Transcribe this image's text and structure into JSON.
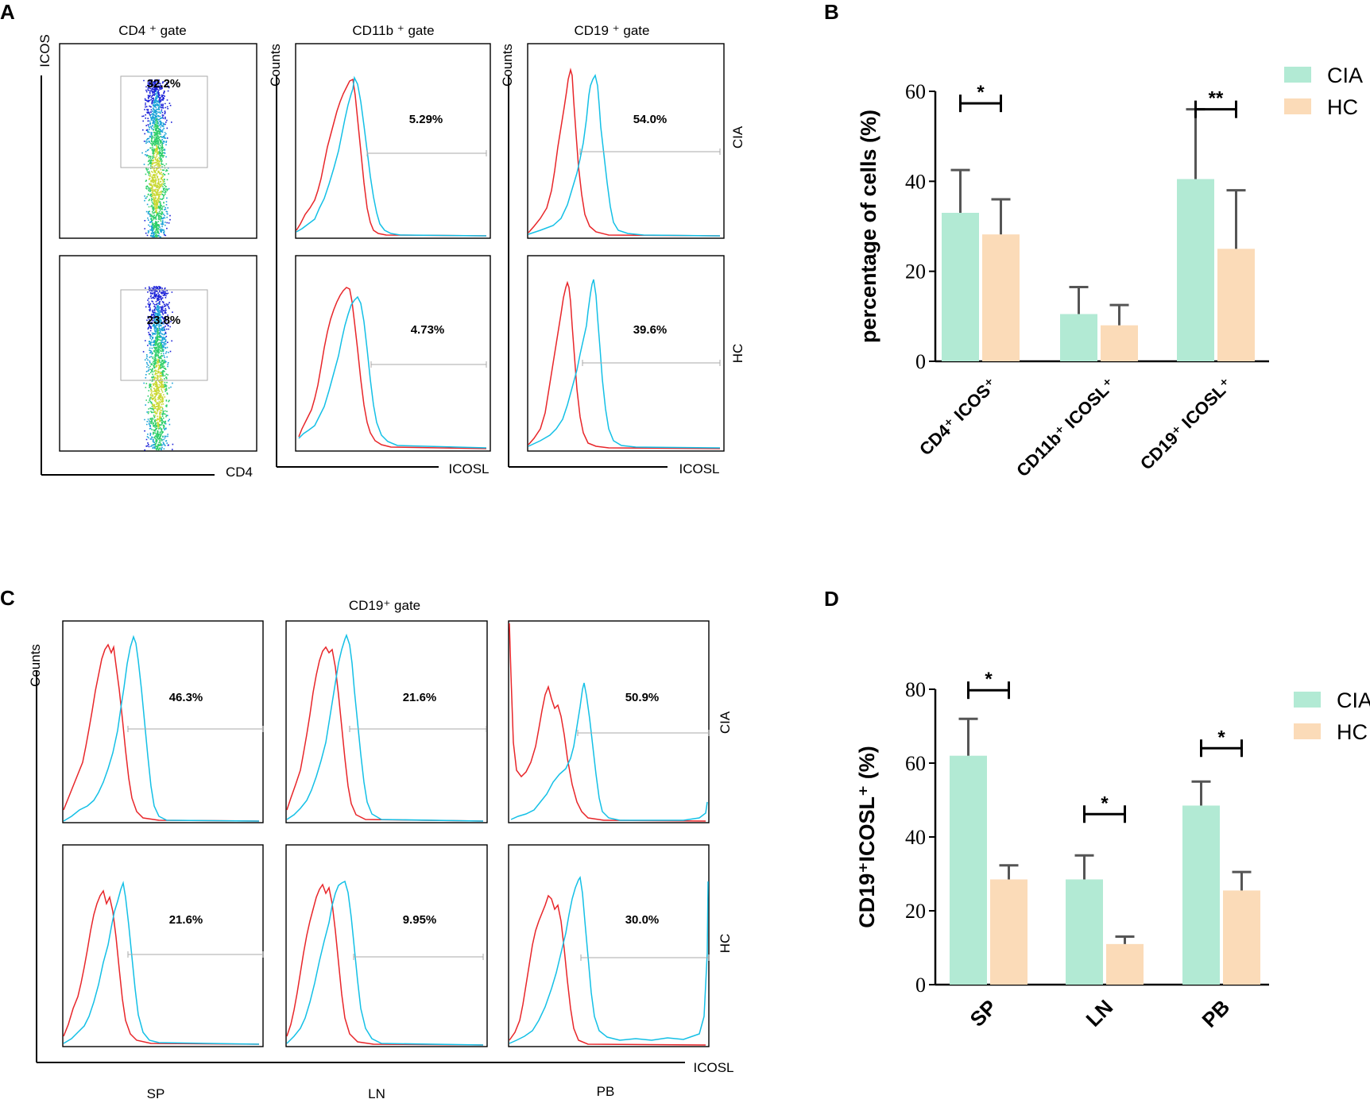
{
  "colors": {
    "cia": "#b2ead4",
    "hc": "#fbdbb8",
    "error_bar": "#555555",
    "control_line": "#e8262a",
    "stain_line": "#14c0e6",
    "gate": "#aaaaaa"
  },
  "panelA": {
    "letter": "A",
    "scatter": {
      "title": "CD4 ⁺ gate",
      "ylabel": "ICOS",
      "xlabel": "CD4",
      "pct_cia": "32.2%",
      "pct_hc": "23.8%"
    },
    "hist1": {
      "title": "CD11b ⁺ gate",
      "ylabel": "Counts",
      "xlabel": "ICOSL",
      "pct_cia": "5.29%",
      "pct_hc": "4.73%"
    },
    "hist2": {
      "title": "CD19 ⁺ gate",
      "ylabel": "Counts",
      "xlabel": "ICOSL",
      "pct_cia": "54.0%",
      "pct_hc": "39.6%"
    },
    "row_cia": "CIA",
    "row_hc": "HC"
  },
  "panelC": {
    "letter": "C",
    "title": "CD19⁺ gate",
    "ylabel": "Counts",
    "xlabel": "ICOSL",
    "columns": [
      "SP",
      "LN",
      "PB"
    ],
    "pct_cia": [
      "46.3%",
      "21.6%",
      "50.9%"
    ],
    "pct_hc": [
      "21.6%",
      "9.95%",
      "30.0%"
    ],
    "row_cia": "CIA",
    "row_hc": "HC"
  },
  "chart_data": [
    {
      "panel": "B",
      "type": "bar",
      "ylabel": "percentage of cells (%)",
      "ylim": [
        0,
        60
      ],
      "yticks": [
        "0",
        "20",
        "40",
        "60"
      ],
      "categories": [
        "CD4⁺ ICOS⁺",
        "CD11b⁺ ICOSL⁺",
        "CD19⁺ ICOSL⁺"
      ],
      "series": [
        {
          "name": "CIA",
          "values": [
            33,
            10.5,
            40.5
          ],
          "errors": [
            9.5,
            6,
            15.5
          ]
        },
        {
          "name": "HC",
          "values": [
            28.2,
            8,
            25
          ],
          "errors": [
            7.8,
            4.5,
            13
          ]
        }
      ],
      "significance": [
        "*",
        "",
        "**"
      ],
      "legend": [
        "CIA",
        "HC"
      ]
    },
    {
      "panel": "D",
      "type": "bar",
      "ylabel": "CD19⁺ICOSL⁺ (%)",
      "ylim": [
        0,
        80
      ],
      "yticks": [
        "0",
        "20",
        "40",
        "60",
        "80"
      ],
      "categories": [
        "SP",
        "LN",
        "PB"
      ],
      "series": [
        {
          "name": "CIA",
          "values": [
            62,
            28.5,
            48.5
          ],
          "errors": [
            10,
            6.5,
            6.5
          ]
        },
        {
          "name": "HC",
          "values": [
            28.5,
            11,
            25.5
          ],
          "errors": [
            3.8,
            2,
            5
          ]
        }
      ],
      "significance": [
        "*",
        "*",
        "*"
      ],
      "legend": [
        "CIA",
        "HC"
      ]
    }
  ]
}
